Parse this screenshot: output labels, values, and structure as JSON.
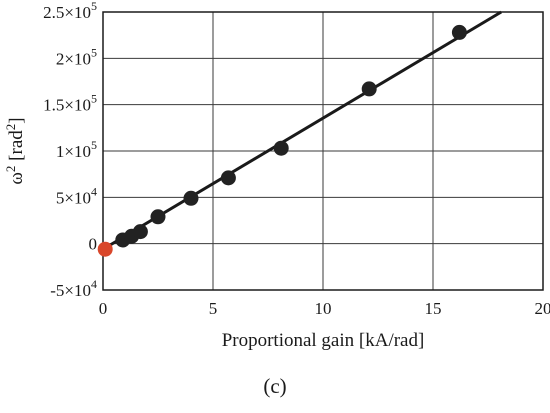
{
  "chart_data": {
    "type": "scatter",
    "xlabel": "Proportional gain [kA/rad]",
    "ylabel_main": "ω",
    "ylabel_sup": "2",
    "ylabel_rest": " [rad",
    "ylabel_sup2": "2",
    "ylabel_end": "]",
    "xlim": [
      0,
      20
    ],
    "ylim": [
      -50000,
      250000
    ],
    "grid": true,
    "x_ticks": [
      {
        "value": 0,
        "label": "0"
      },
      {
        "value": 5,
        "label": "5"
      },
      {
        "value": 10,
        "label": "10"
      },
      {
        "value": 15,
        "label": "15"
      },
      {
        "value": 20,
        "label": "20"
      }
    ],
    "y_ticks": [
      {
        "value": -50000,
        "mant": "-5×10",
        "exp": "4"
      },
      {
        "value": 0,
        "mant": "0",
        "exp": ""
      },
      {
        "value": 50000,
        "mant": "5×10",
        "exp": "4"
      },
      {
        "value": 100000,
        "mant": "1×10",
        "exp": "5"
      },
      {
        "value": 150000,
        "mant": "1.5×10",
        "exp": "5"
      },
      {
        "value": 200000,
        "mant": "2×10",
        "exp": "5"
      },
      {
        "value": 250000,
        "mant": "2.5×10",
        "exp": "5"
      }
    ],
    "series": [
      {
        "color": "#222222",
        "points": [
          {
            "x": 0.9,
            "y": 4000
          },
          {
            "x": 1.3,
            "y": 8000
          },
          {
            "x": 1.7,
            "y": 13000
          },
          {
            "x": 2.5,
            "y": 29000
          },
          {
            "x": 4.0,
            "y": 49000
          },
          {
            "x": 5.7,
            "y": 71000
          },
          {
            "x": 8.1,
            "y": 103000
          },
          {
            "x": 12.1,
            "y": 167000
          },
          {
            "x": 16.2,
            "y": 228000
          }
        ]
      },
      {
        "color": "#d9472b",
        "points": [
          {
            "x": 0.1,
            "y": -6000
          }
        ]
      }
    ],
    "fit_line": {
      "color": "#1a1a1a",
      "x": [
        0,
        18.1
      ],
      "y": [
        -6000,
        250000
      ]
    }
  },
  "panel_label": "(c)"
}
